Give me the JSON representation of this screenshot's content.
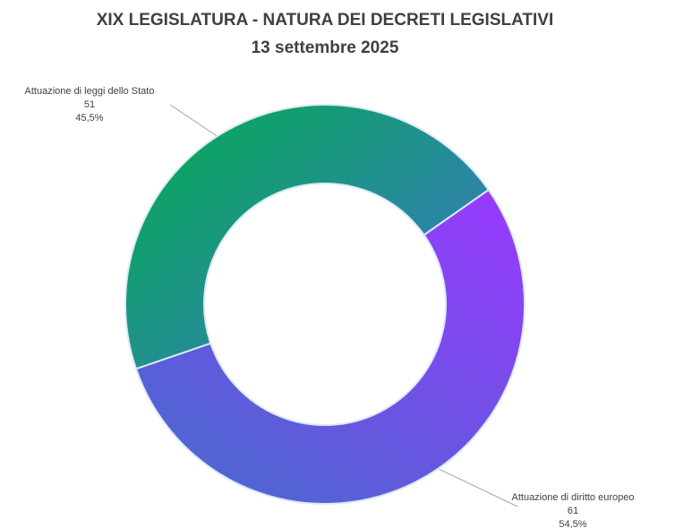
{
  "chart_data": {
    "type": "donut",
    "title": "XIX LEGISLATURA - NATURA DEI DECRETI LEGISLATIVI",
    "subtitle": "13 settembre 2025",
    "categories": [
      "Attuazione di leggi dello Stato",
      "Attuazione di diritto europeo"
    ],
    "values": [
      51,
      61
    ],
    "percentages": [
      45.5,
      54.5
    ],
    "percentage_labels": [
      "45,5%",
      "54,5%"
    ],
    "colors": [
      [
        "#3a78c2",
        "#05aa55"
      ],
      [
        "#4b68cf",
        "#9a38ff"
      ]
    ]
  }
}
